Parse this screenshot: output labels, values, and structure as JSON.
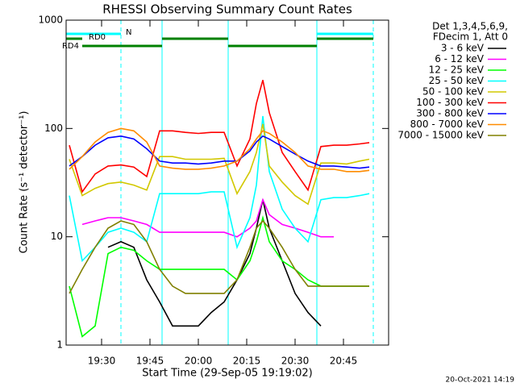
{
  "chart_data": {
    "type": "line",
    "title": "RHESSI Observing Summary Count Rates",
    "x_label": "Start Time (29-Sep-05 19:19:02)",
    "y_label": "Count Rate (s⁻¹ detector⁻¹)",
    "footer": "20-Oct-2021 14:19",
    "legend_header": [
      "Det 1,3,4,5,6,9,",
      "FDecim 1, Att 0"
    ],
    "y_scale": "log",
    "xlim": [
      1159,
      1259
    ],
    "xticks": [
      {
        "value": 1170,
        "label": "19:30"
      },
      {
        "value": 1185,
        "label": "19:45"
      },
      {
        "value": 1200,
        "label": "20:00"
      },
      {
        "value": 1215,
        "label": "20:15"
      },
      {
        "value": 1230,
        "label": "20:30"
      },
      {
        "value": 1245,
        "label": "20:45"
      }
    ],
    "ylim": [
      1,
      1000
    ],
    "yticks": [
      1,
      10,
      100,
      1000
    ],
    "x": [
      1160,
      1164,
      1168,
      1172,
      1176,
      1180,
      1184,
      1188,
      1192,
      1196,
      1200,
      1204,
      1208,
      1212,
      1216,
      1218,
      1220,
      1222,
      1226,
      1230,
      1234,
      1238,
      1242,
      1246,
      1250,
      1253
    ],
    "series": [
      {
        "name": "3 - 6 keV",
        "color": "#000000",
        "values": [
          null,
          null,
          null,
          8,
          9,
          8,
          4,
          2.5,
          1.5,
          1.5,
          1.5,
          2,
          2.5,
          4,
          7,
          12,
          22,
          12,
          6,
          3,
          2,
          1.5,
          null,
          null,
          null,
          null
        ]
      },
      {
        "name": "6 - 12 keV",
        "color": "#ff00ff",
        "values": [
          null,
          13,
          14,
          15,
          15,
          14,
          13,
          11,
          11,
          11,
          11,
          11,
          11,
          10,
          12,
          14,
          22,
          16,
          13,
          12,
          11,
          10,
          10,
          null,
          null,
          null
        ]
      },
      {
        "name": "12 - 25 keV",
        "color": "#00ff00",
        "values": [
          3.5,
          1.2,
          1.5,
          7,
          8,
          7.5,
          6,
          5,
          5,
          5,
          5,
          5,
          5,
          4,
          6,
          9,
          15,
          9,
          6,
          5,
          4,
          3.5,
          3.5,
          3.5,
          3.5,
          3.5
        ]
      },
      {
        "name": "25 - 50 keV",
        "color": "#00ffff",
        "values": [
          24,
          6,
          8,
          11,
          12,
          11,
          9,
          25,
          25,
          25,
          25,
          26,
          26,
          8,
          15,
          30,
          130,
          40,
          18,
          12,
          9,
          22,
          23,
          23,
          24,
          25
        ]
      },
      {
        "name": "50 - 100 keV",
        "color": "#d2c800",
        "values": [
          52,
          24,
          28,
          31,
          32,
          30,
          27,
          55,
          55,
          52,
          52,
          52,
          53,
          25,
          40,
          60,
          110,
          45,
          32,
          24,
          20,
          48,
          48,
          47,
          50,
          52
        ]
      },
      {
        "name": "100 - 300 keV",
        "color": "#ff0000",
        "values": [
          70,
          26,
          38,
          45,
          46,
          44,
          36,
          95,
          95,
          92,
          90,
          92,
          92,
          45,
          80,
          170,
          280,
          140,
          60,
          40,
          27,
          68,
          70,
          70,
          72,
          74
        ]
      },
      {
        "name": "300 - 800 keV",
        "color": "#0000ff",
        "values": [
          45,
          55,
          70,
          82,
          85,
          80,
          65,
          50,
          48,
          48,
          47,
          48,
          50,
          50,
          62,
          75,
          85,
          80,
          68,
          58,
          50,
          45,
          45,
          44,
          43,
          44
        ]
      },
      {
        "name": "800 - 7000 keV",
        "color": "#ff8c00",
        "values": [
          42,
          55,
          75,
          92,
          100,
          95,
          75,
          45,
          43,
          42,
          42,
          43,
          45,
          50,
          65,
          80,
          95,
          90,
          75,
          60,
          45,
          42,
          42,
          40,
          40,
          41
        ]
      },
      {
        "name": "7000 - 15000 keV",
        "color": "#808000",
        "values": [
          3,
          5,
          8,
          12,
          14,
          13,
          9,
          5,
          3.5,
          3,
          3,
          3,
          3,
          4,
          8,
          12,
          14,
          12,
          8,
          5,
          3.5,
          3.5,
          3.5,
          3.5,
          3.5,
          3.5
        ]
      }
    ],
    "vlines": [
      {
        "x": 1176,
        "style": "dashed",
        "color": "#00ffff"
      },
      {
        "x": 1188.75,
        "style": "solid",
        "color": "#00ffff"
      },
      {
        "x": 1209.25,
        "style": "solid",
        "color": "#00ffff"
      },
      {
        "x": 1236.75,
        "style": "solid",
        "color": "#00ffff"
      },
      {
        "x": 1254.25,
        "style": "dashed",
        "color": "#00ffff"
      }
    ],
    "annotations": [
      {
        "label": "N",
        "color": "#00ffff",
        "ranges": [
          [
            1159,
            1176
          ],
          [
            1236.75,
            1254.25
          ]
        ]
      },
      {
        "label": "RD0",
        "color": "#008000",
        "ranges": [
          [
            1159,
            1164
          ],
          [
            1188.75,
            1209.25
          ],
          [
            1236.75,
            1254.25
          ]
        ]
      },
      {
        "label": "RD4",
        "color": "#008000",
        "ranges": [
          [
            1164,
            1188.75
          ],
          [
            1209.25,
            1236.75
          ]
        ]
      }
    ]
  }
}
